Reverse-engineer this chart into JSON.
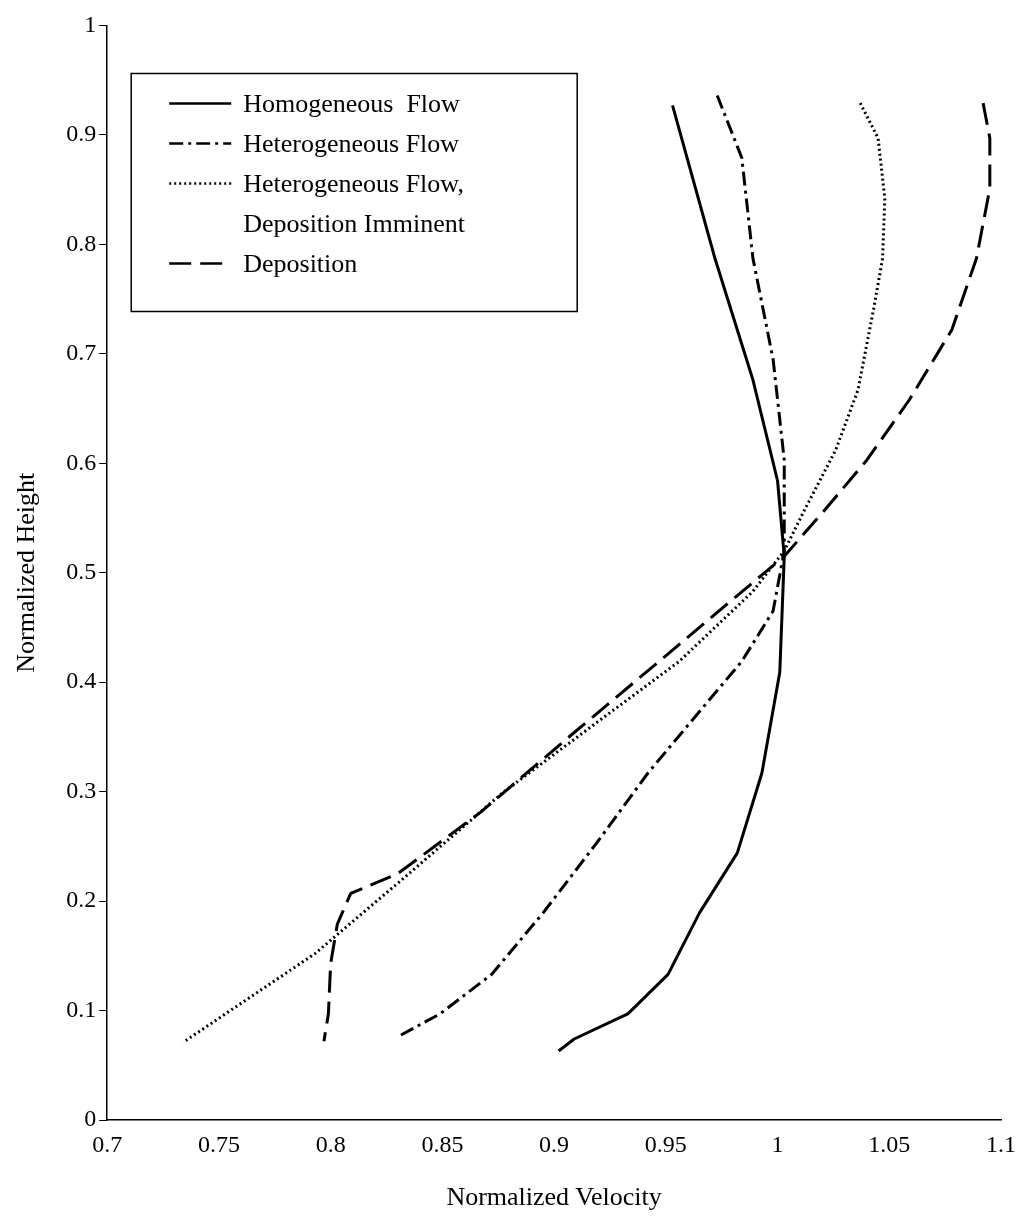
{
  "chart_data": {
    "type": "line",
    "xlabel": "Normalized Velocity",
    "ylabel": "Normalized Height",
    "xlim": [
      0.7,
      1.1
    ],
    "xticks": [
      0.7,
      0.75,
      0.8,
      0.85,
      0.9,
      0.95,
      1,
      1.05,
      1.1
    ],
    "ylim": [
      0,
      1
    ],
    "yticks": [
      0,
      0.1,
      0.2,
      0.3,
      0.4,
      0.5,
      0.6,
      0.7,
      0.8,
      0.9,
      1
    ],
    "grid": false,
    "legend": "top left",
    "marker": "none",
    "series": [
      {
        "name": "Homogeneous  Flow",
        "color": "#000000",
        "line_style": "solid",
        "x": [
          0.953,
          0.972,
          0.989,
          1.0,
          1.003,
          1.001,
          0.993,
          0.982,
          0.965,
          0.951,
          0.933,
          0.909,
          0.902
        ],
        "values": [
          0.927,
          0.787,
          0.676,
          0.584,
          0.515,
          0.409,
          0.317,
          0.244,
          0.189,
          0.133,
          0.097,
          0.074,
          0.063
        ]
      },
      {
        "name": "Heterogeneous Flow",
        "color": "#000000",
        "line_style": "dashdot",
        "x": [
          0.973,
          0.984,
          0.989,
          0.998,
          1.003,
          1.003,
          0.998,
          0.984,
          0.965,
          0.942,
          0.919,
          0.895,
          0.872,
          0.849,
          0.83
        ],
        "values": [
          0.936,
          0.879,
          0.787,
          0.695,
          0.603,
          0.52,
          0.465,
          0.419,
          0.373,
          0.317,
          0.253,
          0.189,
          0.133,
          0.097,
          0.076
        ]
      },
      {
        "name": "Heterogeneous Flow, Deposition Imminent",
        "color": "#000000",
        "line_style": "dotted",
        "x": [
          1.037,
          1.045,
          1.048,
          1.047,
          1.043,
          1.036,
          1.026,
          1.012,
          1.003,
          0.989,
          0.956,
          0.919,
          0.877,
          0.835,
          0.793,
          0.734
        ],
        "values": [
          0.929,
          0.897,
          0.842,
          0.787,
          0.741,
          0.667,
          0.612,
          0.557,
          0.52,
          0.483,
          0.419,
          0.363,
          0.299,
          0.225,
          0.152,
          0.071
        ]
      },
      {
        "name": "Deposition",
        "color": "#000000",
        "line_style": "dashed",
        "x": [
          1.092,
          1.095,
          1.095,
          1.089,
          1.078,
          1.059,
          1.04,
          1.021,
          1.003,
          0.979,
          0.947,
          0.909,
          0.867,
          0.83,
          0.809,
          0.803,
          0.8,
          0.799,
          0.797
        ],
        "values": [
          0.929,
          0.897,
          0.851,
          0.787,
          0.722,
          0.658,
          0.603,
          0.557,
          0.515,
          0.474,
          0.419,
          0.354,
          0.281,
          0.225,
          0.207,
          0.179,
          0.143,
          0.097,
          0.072
        ]
      }
    ]
  }
}
